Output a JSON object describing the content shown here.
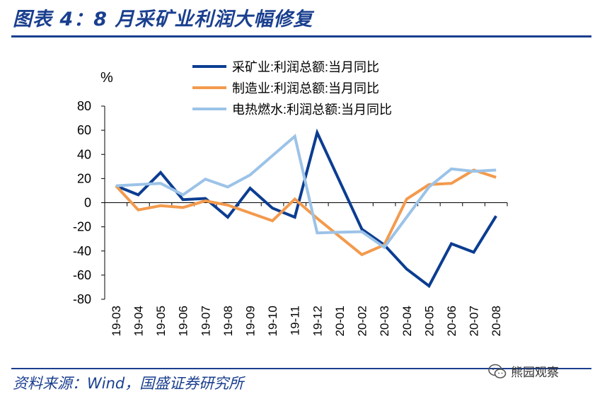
{
  "header": {
    "title": "图表 4：8 月采矿业利润大幅修复"
  },
  "footer": {
    "source": "资料来源：Wind，国盛证券研究所"
  },
  "watermark": {
    "text": "熊园观察",
    "icon": "wechat-icon"
  },
  "chart_data": {
    "type": "line",
    "title": "",
    "ylabel": "%",
    "xlabel": "",
    "ylim": [
      -80,
      80
    ],
    "yticks": [
      80,
      60,
      40,
      20,
      0,
      -20,
      -40,
      -60,
      -80
    ],
    "grid": false,
    "legend_position": "top-right",
    "categories": [
      "19-03",
      "19-04",
      "19-05",
      "19-06",
      "19-07",
      "19-08",
      "19-09",
      "19-10",
      "19-11",
      "19-12",
      "20-01",
      "20-02",
      "20-03",
      "20-04",
      "20-05",
      "20-06",
      "20-07",
      "20-08"
    ],
    "series": [
      {
        "name": "采矿业:利润总额:当月同比",
        "color": "#0b3d91",
        "values": [
          14,
          6.5,
          25,
          2.5,
          3.5,
          -12,
          12,
          -4.5,
          -12,
          58,
          18,
          -22,
          -35,
          -55,
          -69,
          -34,
          -41,
          -11
        ]
      },
      {
        "name": "制造业:利润总额:当月同比",
        "color": "#f39a4d",
        "values": [
          14,
          -6,
          -2.5,
          -4,
          1.5,
          -2,
          -8.5,
          -15,
          3,
          -13,
          -28,
          -43,
          -35,
          3,
          15,
          16,
          27,
          21
        ]
      },
      {
        "name": "电热燃水:利润总额:当月同比",
        "color": "#9cc3e8",
        "values": [
          14,
          15,
          16,
          6.5,
          19.5,
          13,
          23,
          39,
          55,
          -25,
          -24.5,
          -24,
          -37,
          -12,
          13,
          28,
          26,
          27
        ]
      }
    ]
  }
}
